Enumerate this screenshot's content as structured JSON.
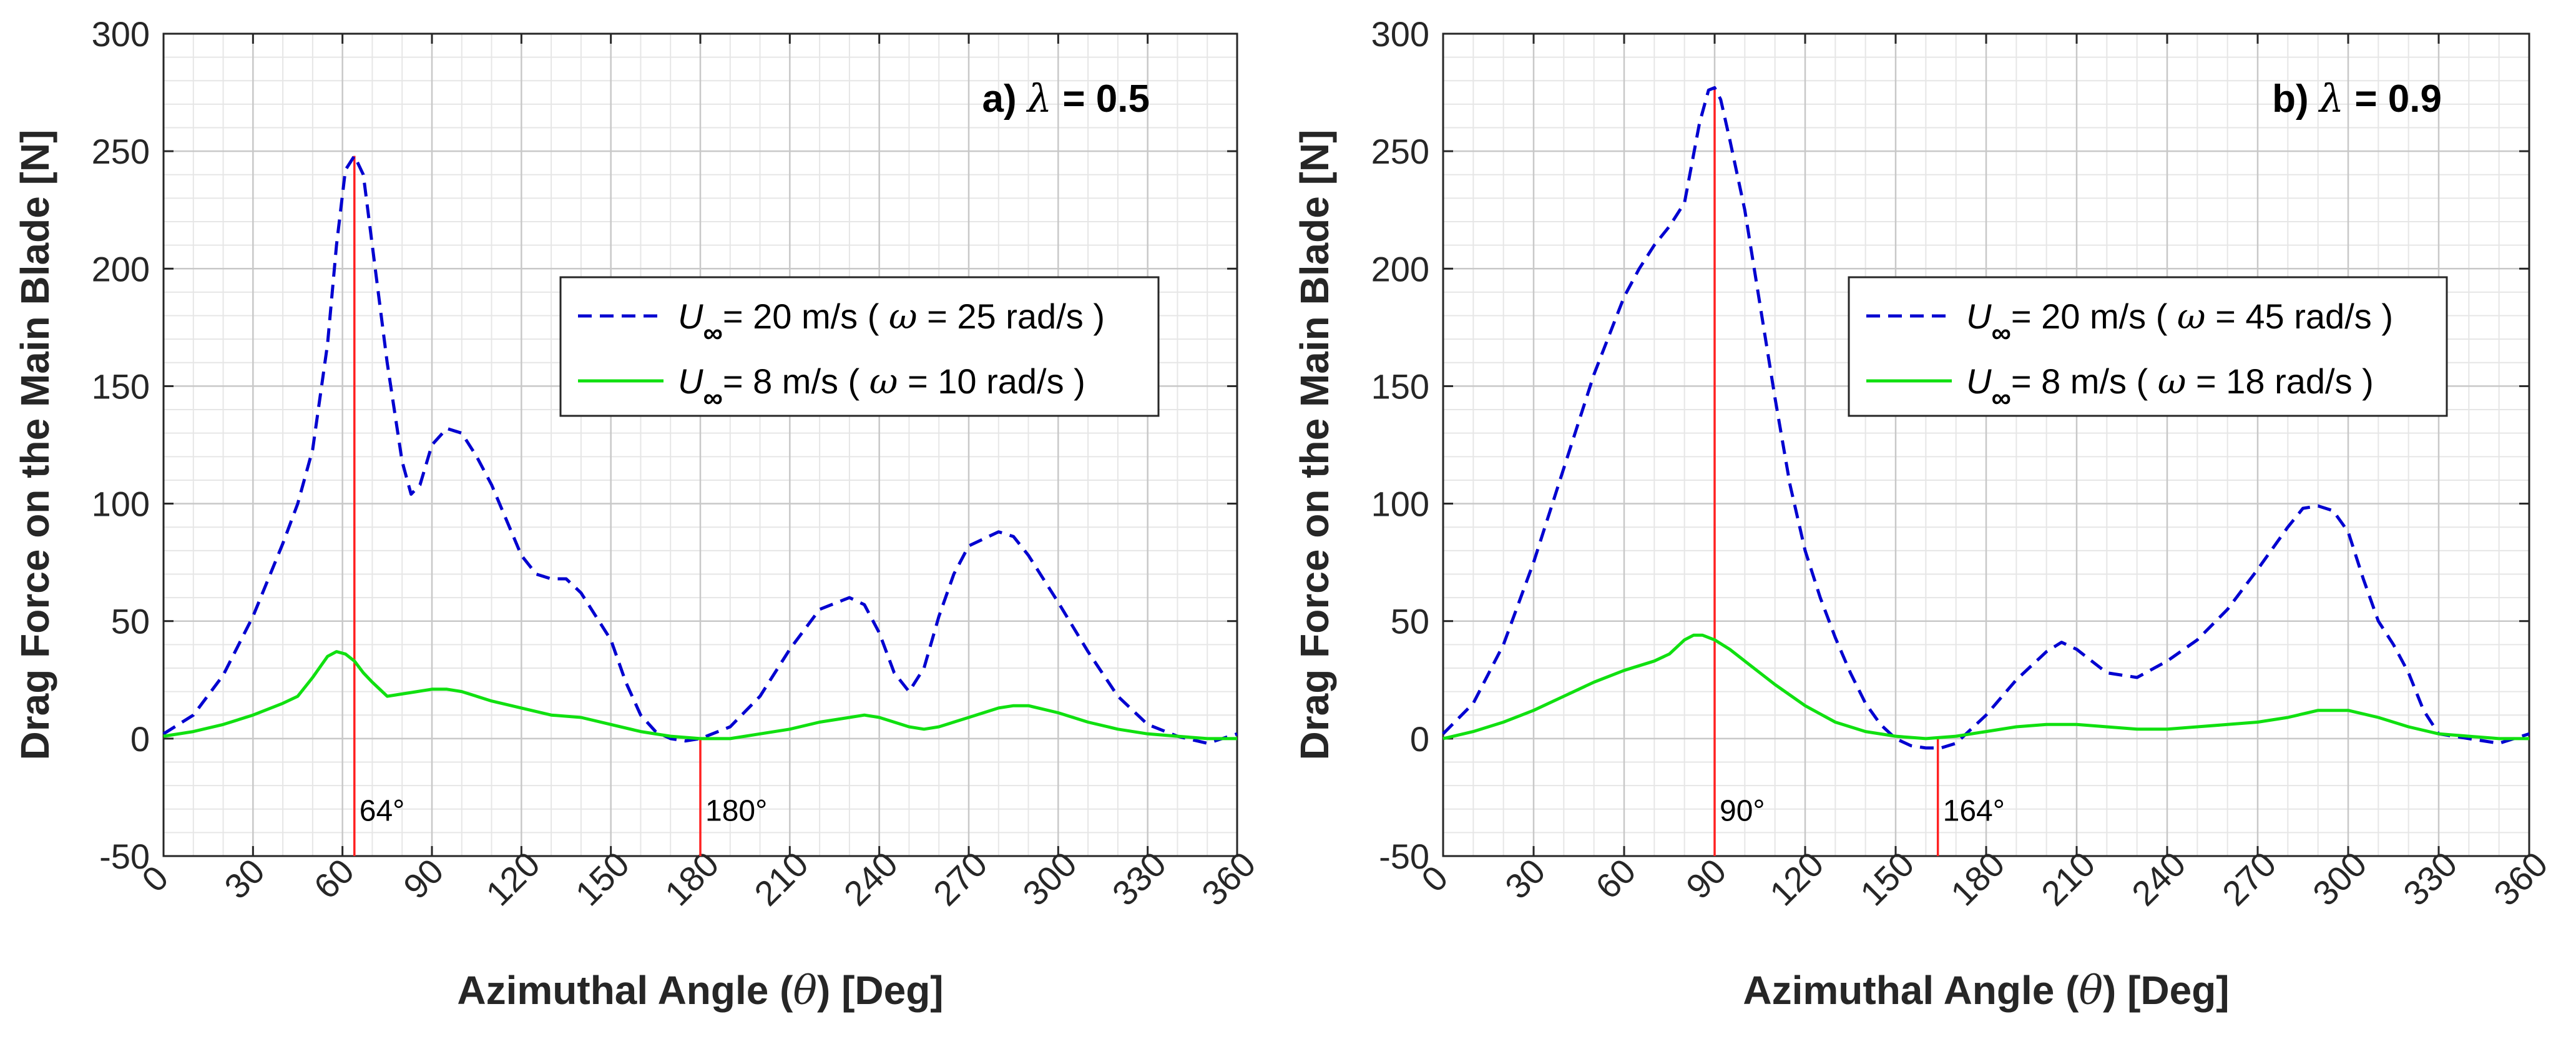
{
  "chart_data": [
    {
      "type": "line",
      "panel_label": "a)",
      "lambda_symbol": "λ",
      "lambda_text": "= 0.5",
      "xlabel_main": "Azimuthal Angle (",
      "xlabel_theta": "θ",
      "xlabel_tail": ")  [Deg]",
      "ylabel": "Drag Force on the Main Blade [N]",
      "xlim": [
        0,
        360
      ],
      "ylim": [
        -50,
        300
      ],
      "xticks": [
        0,
        30,
        60,
        90,
        120,
        150,
        180,
        210,
        240,
        270,
        300,
        330,
        360
      ],
      "yticks": [
        -50,
        0,
        50,
        100,
        150,
        200,
        250,
        300
      ],
      "grid": true,
      "legend_position": "upper-right",
      "series": [
        {
          "name": "U∞ = 20 m/s ( ω = 25 rad/s )",
          "legend_u": "U",
          "legend_inf": "∞",
          "legend_text": "= 20 m/s  ( ",
          "legend_omega": "ω",
          "legend_tail": " = 25 rad/s )",
          "style": "dashed",
          "color": "#0000d0",
          "x": [
            0,
            10,
            20,
            30,
            40,
            45,
            50,
            55,
            58,
            61,
            64,
            67,
            70,
            75,
            80,
            83,
            86,
            90,
            95,
            100,
            105,
            110,
            115,
            120,
            125,
            130,
            135,
            140,
            145,
            150,
            155,
            160,
            165,
            170,
            175,
            180,
            190,
            200,
            210,
            220,
            230,
            235,
            240,
            245,
            250,
            255,
            260,
            265,
            270,
            280,
            285,
            290,
            300,
            310,
            320,
            330,
            340,
            350,
            355,
            360
          ],
          "y": [
            2,
            10,
            27,
            52,
            83,
            100,
            123,
            168,
            210,
            242,
            248,
            240,
            210,
            160,
            118,
            104,
            108,
            125,
            132,
            130,
            120,
            108,
            93,
            78,
            70,
            68,
            68,
            62,
            52,
            42,
            24,
            10,
            3,
            0,
            -1,
            0,
            5,
            18,
            38,
            55,
            60,
            57,
            45,
            28,
            20,
            30,
            52,
            70,
            82,
            88,
            86,
            78,
            58,
            37,
            18,
            6,
            1,
            -2,
            0,
            2
          ]
        },
        {
          "name": "U∞ = 8 m/s ( ω = 10 rad/s )",
          "legend_u": "U",
          "legend_inf": "∞",
          "legend_text": "=  8 m/s   ( ",
          "legend_omega": "ω",
          "legend_tail": " = 10 rad/s )",
          "style": "solid",
          "color": "#10e010",
          "x": [
            0,
            10,
            20,
            30,
            40,
            45,
            50,
            55,
            58,
            61,
            64,
            67,
            70,
            75,
            80,
            85,
            90,
            95,
            100,
            110,
            120,
            130,
            140,
            150,
            160,
            170,
            180,
            190,
            200,
            210,
            220,
            230,
            235,
            240,
            245,
            250,
            255,
            260,
            270,
            280,
            285,
            290,
            300,
            310,
            320,
            330,
            340,
            350,
            360
          ],
          "y": [
            1,
            3,
            6,
            10,
            15,
            18,
            26,
            35,
            37,
            36,
            33,
            28,
            24,
            18,
            19,
            20,
            21,
            21,
            20,
            16,
            13,
            10,
            9,
            6,
            3,
            1,
            0,
            0,
            2,
            4,
            7,
            9,
            10,
            9,
            7,
            5,
            4,
            5,
            9,
            13,
            14,
            14,
            11,
            7,
            4,
            2,
            1,
            0,
            0
          ]
        }
      ],
      "annotations": [
        {
          "x": 64,
          "label": "64°",
          "color": "#ff2020"
        },
        {
          "x": 180,
          "label": "180°",
          "color": "#ff2020"
        }
      ]
    },
    {
      "type": "line",
      "panel_label": "b)",
      "lambda_symbol": "λ",
      "lambda_text": "= 0.9",
      "xlabel_main": "Azimuthal Angle (",
      "xlabel_theta": "θ",
      "xlabel_tail": ")  [Deg]",
      "ylabel": "Drag Force on the Main Blade [N]",
      "xlim": [
        0,
        360
      ],
      "ylim": [
        -50,
        300
      ],
      "xticks": [
        0,
        30,
        60,
        90,
        120,
        150,
        180,
        210,
        240,
        270,
        300,
        330,
        360
      ],
      "yticks": [
        -50,
        0,
        50,
        100,
        150,
        200,
        250,
        300
      ],
      "grid": true,
      "legend_position": "upper-right",
      "series": [
        {
          "name": "U∞ = 20 m/s ( ω = 45 rad/s )",
          "legend_u": "U",
          "legend_inf": "∞",
          "legend_text": "= 20 m/s  ( ",
          "legend_omega": "ω",
          "legend_tail": " = 45 rad/s )",
          "style": "dashed",
          "color": "#0000d0",
          "x": [
            0,
            10,
            20,
            30,
            40,
            50,
            60,
            65,
            70,
            75,
            80,
            85,
            88,
            90,
            92,
            95,
            100,
            105,
            110,
            115,
            120,
            125,
            130,
            135,
            140,
            145,
            150,
            155,
            160,
            165,
            170,
            180,
            190,
            200,
            205,
            210,
            220,
            230,
            240,
            250,
            260,
            270,
            280,
            285,
            290,
            295,
            300,
            305,
            310,
            315,
            320,
            325,
            330,
            340,
            350,
            360
          ],
          "y": [
            2,
            15,
            40,
            75,
            115,
            155,
            188,
            200,
            210,
            218,
            228,
            262,
            276,
            277,
            272,
            255,
            225,
            185,
            145,
            108,
            80,
            60,
            43,
            28,
            15,
            6,
            0,
            -3,
            -4,
            -4,
            -2,
            10,
            25,
            37,
            41,
            38,
            28,
            26,
            33,
            42,
            55,
            72,
            90,
            98,
            99,
            97,
            88,
            68,
            50,
            40,
            28,
            12,
            2,
            0,
            -2,
            2
          ]
        },
        {
          "name": "U∞ = 8 m/s ( ω = 18 rad/s )",
          "legend_u": "U",
          "legend_inf": "∞",
          "legend_text": "=  8 m/s   ( ",
          "legend_omega": "ω",
          "legend_tail": " = 18 rad/s )",
          "style": "solid",
          "color": "#10e010",
          "x": [
            0,
            10,
            20,
            30,
            40,
            50,
            60,
            70,
            75,
            80,
            83,
            86,
            90,
            95,
            100,
            110,
            120,
            130,
            140,
            150,
            160,
            170,
            180,
            190,
            200,
            210,
            220,
            230,
            240,
            250,
            260,
            270,
            280,
            290,
            300,
            310,
            320,
            330,
            340,
            350,
            360
          ],
          "y": [
            0,
            3,
            7,
            12,
            18,
            24,
            29,
            33,
            36,
            42,
            44,
            44,
            42,
            38,
            33,
            23,
            14,
            7,
            3,
            1,
            0,
            1,
            3,
            5,
            6,
            6,
            5,
            4,
            4,
            5,
            6,
            7,
            9,
            12,
            12,
            9,
            5,
            2,
            1,
            0,
            0
          ]
        }
      ],
      "annotations": [
        {
          "x": 90,
          "label": "90°",
          "color": "#ff2020"
        },
        {
          "x": 164,
          "label": "164°",
          "color": "#ff2020"
        }
      ]
    }
  ]
}
